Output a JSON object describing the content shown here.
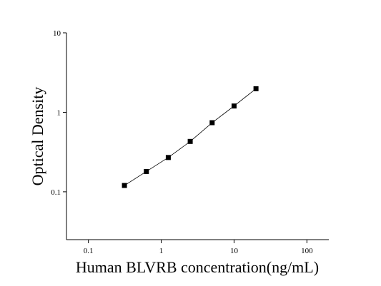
{
  "chart_data": {
    "type": "scatter",
    "x_label": "Human BLVRB concentration(ng/mL)",
    "y_label": "Optical Density",
    "x_scale": "log",
    "y_scale": "log",
    "xlim": [
      0.05,
      200
    ],
    "ylim": [
      0.025,
      10
    ],
    "xticks": [
      0.1,
      1,
      10,
      100
    ],
    "yticks": [
      0.1,
      1,
      10
    ],
    "series": [
      {
        "color": "#000000",
        "x": [
          0.3125,
          0.625,
          1.25,
          2.5,
          5,
          10,
          20
        ],
        "values": [
          0.12,
          0.18,
          0.27,
          0.43,
          0.74,
          1.2,
          1.98
        ]
      }
    ]
  }
}
